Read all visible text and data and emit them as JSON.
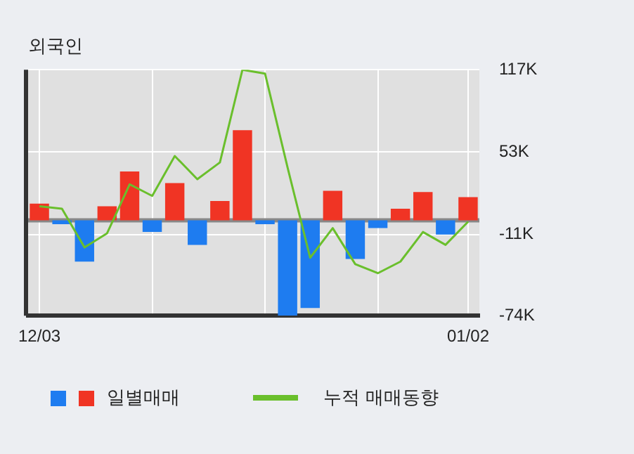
{
  "chart_data": {
    "type": "bar",
    "title": "외국인",
    "categories": [
      "12/03",
      null,
      null,
      null,
      null,
      null,
      null,
      null,
      null,
      null,
      null,
      null,
      null,
      null,
      null,
      null,
      null,
      null,
      null,
      "01/02"
    ],
    "series": [
      {
        "name": "일별매매",
        "colors": [
          "#f03424",
          "#1e7cf0",
          "#1e7cf0",
          "#f03424",
          "#f03424",
          "#1e7cf0",
          "#f03424",
          "#1e7cf0",
          "#f03424",
          "#f03424",
          "#1e7cf0",
          "#1e7cf0",
          "#1e7cf0",
          "#f03424",
          "#1e7cf0",
          "#1e7cf0",
          "#f03424",
          "#f03424",
          "#1e7cf0",
          "#f03424"
        ],
        "values": [
          13,
          -3,
          -32,
          11,
          38,
          -9,
          29,
          -19,
          15,
          70,
          -3,
          -74,
          -68,
          23,
          -30,
          -6,
          9,
          22,
          -11,
          18
        ]
      },
      {
        "name": "누적 매매동향",
        "type": "line",
        "color": "#6abf2c",
        "values": [
          11,
          9,
          -21,
          -10,
          28,
          19,
          50,
          32,
          45,
          117,
          114,
          41,
          -29,
          -6,
          -34,
          -41,
          -32,
          -9,
          -19,
          -1
        ]
      }
    ],
    "ylim": [
      -74,
      117
    ],
    "yticks": [
      {
        "value": 117,
        "label": "117K"
      },
      {
        "value": 53,
        "label": "53K"
      },
      {
        "value": -11,
        "label": "-11K"
      },
      {
        "value": -74,
        "label": "-74K"
      }
    ],
    "ref_lines": [
      {
        "axis": "y",
        "value": 0,
        "color": "#888888"
      }
    ],
    "grid": true,
    "legend": "bottom",
    "marker": "none",
    "line_style": "solid"
  }
}
